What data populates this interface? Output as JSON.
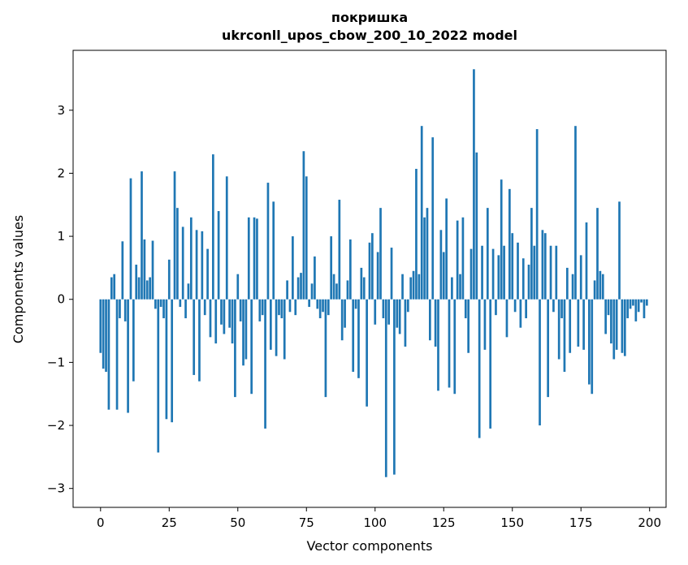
{
  "figure": {
    "background": "#ffffff"
  },
  "chart_data": {
    "type": "bar",
    "title": "покришка",
    "subtitle": "ukrconll_upos_cbow_200_10_2022 model",
    "xlabel": "Vector components",
    "ylabel": "Components values",
    "legend": "none",
    "grid": false,
    "bar_color": "#1f77b4",
    "x_ticks": [
      0,
      25,
      50,
      75,
      100,
      125,
      150,
      175,
      200
    ],
    "y_ticks": [
      -3,
      -2,
      -1,
      0,
      1,
      2,
      3
    ],
    "xlim": [
      -10,
      206
    ],
    "ylim": [
      -3.3,
      3.95
    ],
    "x_is_index_from": 0,
    "values": [
      -0.85,
      -1.1,
      -1.15,
      -1.75,
      0.35,
      0.4,
      -1.75,
      -0.3,
      0.92,
      -0.35,
      -1.8,
      1.92,
      -1.3,
      0.55,
      0.35,
      2.03,
      0.95,
      0.3,
      0.35,
      0.93,
      -0.15,
      -2.43,
      -0.12,
      -0.3,
      -1.9,
      0.63,
      -1.95,
      2.03,
      1.45,
      -0.12,
      1.15,
      -0.3,
      0.25,
      1.3,
      -1.2,
      1.1,
      -1.3,
      1.08,
      -0.25,
      0.8,
      -0.6,
      2.3,
      -0.7,
      1.4,
      -0.4,
      -0.55,
      1.95,
      -0.45,
      -0.7,
      -1.55,
      0.4,
      -0.35,
      -1.05,
      -0.95,
      1.3,
      -1.5,
      1.3,
      1.28,
      -0.35,
      -0.25,
      -2.05,
      1.85,
      -0.8,
      1.55,
      -0.9,
      -0.25,
      -0.3,
      -0.95,
      0.3,
      -0.2,
      1.0,
      -0.25,
      0.35,
      0.42,
      2.35,
      1.95,
      -0.12,
      0.25,
      0.68,
      -0.15,
      -0.3,
      -0.2,
      -1.55,
      -0.25,
      1.0,
      0.4,
      0.25,
      1.58,
      -0.65,
      -0.45,
      0.3,
      0.95,
      -1.15,
      -0.15,
      -1.25,
      0.5,
      0.35,
      -1.7,
      0.9,
      1.05,
      -0.4,
      0.75,
      1.45,
      -0.3,
      -2.82,
      -0.4,
      0.82,
      -2.78,
      -0.45,
      -0.55,
      0.4,
      -0.75,
      -0.2,
      0.35,
      0.45,
      2.07,
      0.4,
      2.75,
      1.3,
      1.45,
      -0.65,
      2.57,
      -0.75,
      -1.45,
      1.1,
      0.75,
      1.6,
      -1.4,
      0.35,
      -1.5,
      1.25,
      0.4,
      1.3,
      -0.3,
      -0.85,
      0.8,
      3.65,
      2.33,
      -2.2,
      0.85,
      -0.8,
      1.45,
      -2.05,
      0.8,
      -0.25,
      0.7,
      1.9,
      0.85,
      -0.6,
      1.75,
      1.05,
      -0.2,
      0.9,
      -0.45,
      0.65,
      -0.3,
      0.55,
      1.45,
      0.85,
      2.7,
      -2.0,
      1.1,
      1.05,
      -1.55,
      0.85,
      -0.2,
      0.85,
      -0.95,
      -0.3,
      -1.15,
      0.5,
      -0.85,
      0.4,
      2.75,
      -0.75,
      0.7,
      -0.8,
      1.22,
      -1.35,
      -1.5,
      0.3,
      1.45,
      0.45,
      0.4,
      -0.55,
      -0.25,
      -0.7,
      -0.95,
      -0.8,
      1.55,
      -0.85,
      -0.9,
      -0.3,
      -0.15,
      -0.1,
      -0.35,
      -0.2,
      -0.05,
      -0.3,
      -0.1
    ]
  }
}
